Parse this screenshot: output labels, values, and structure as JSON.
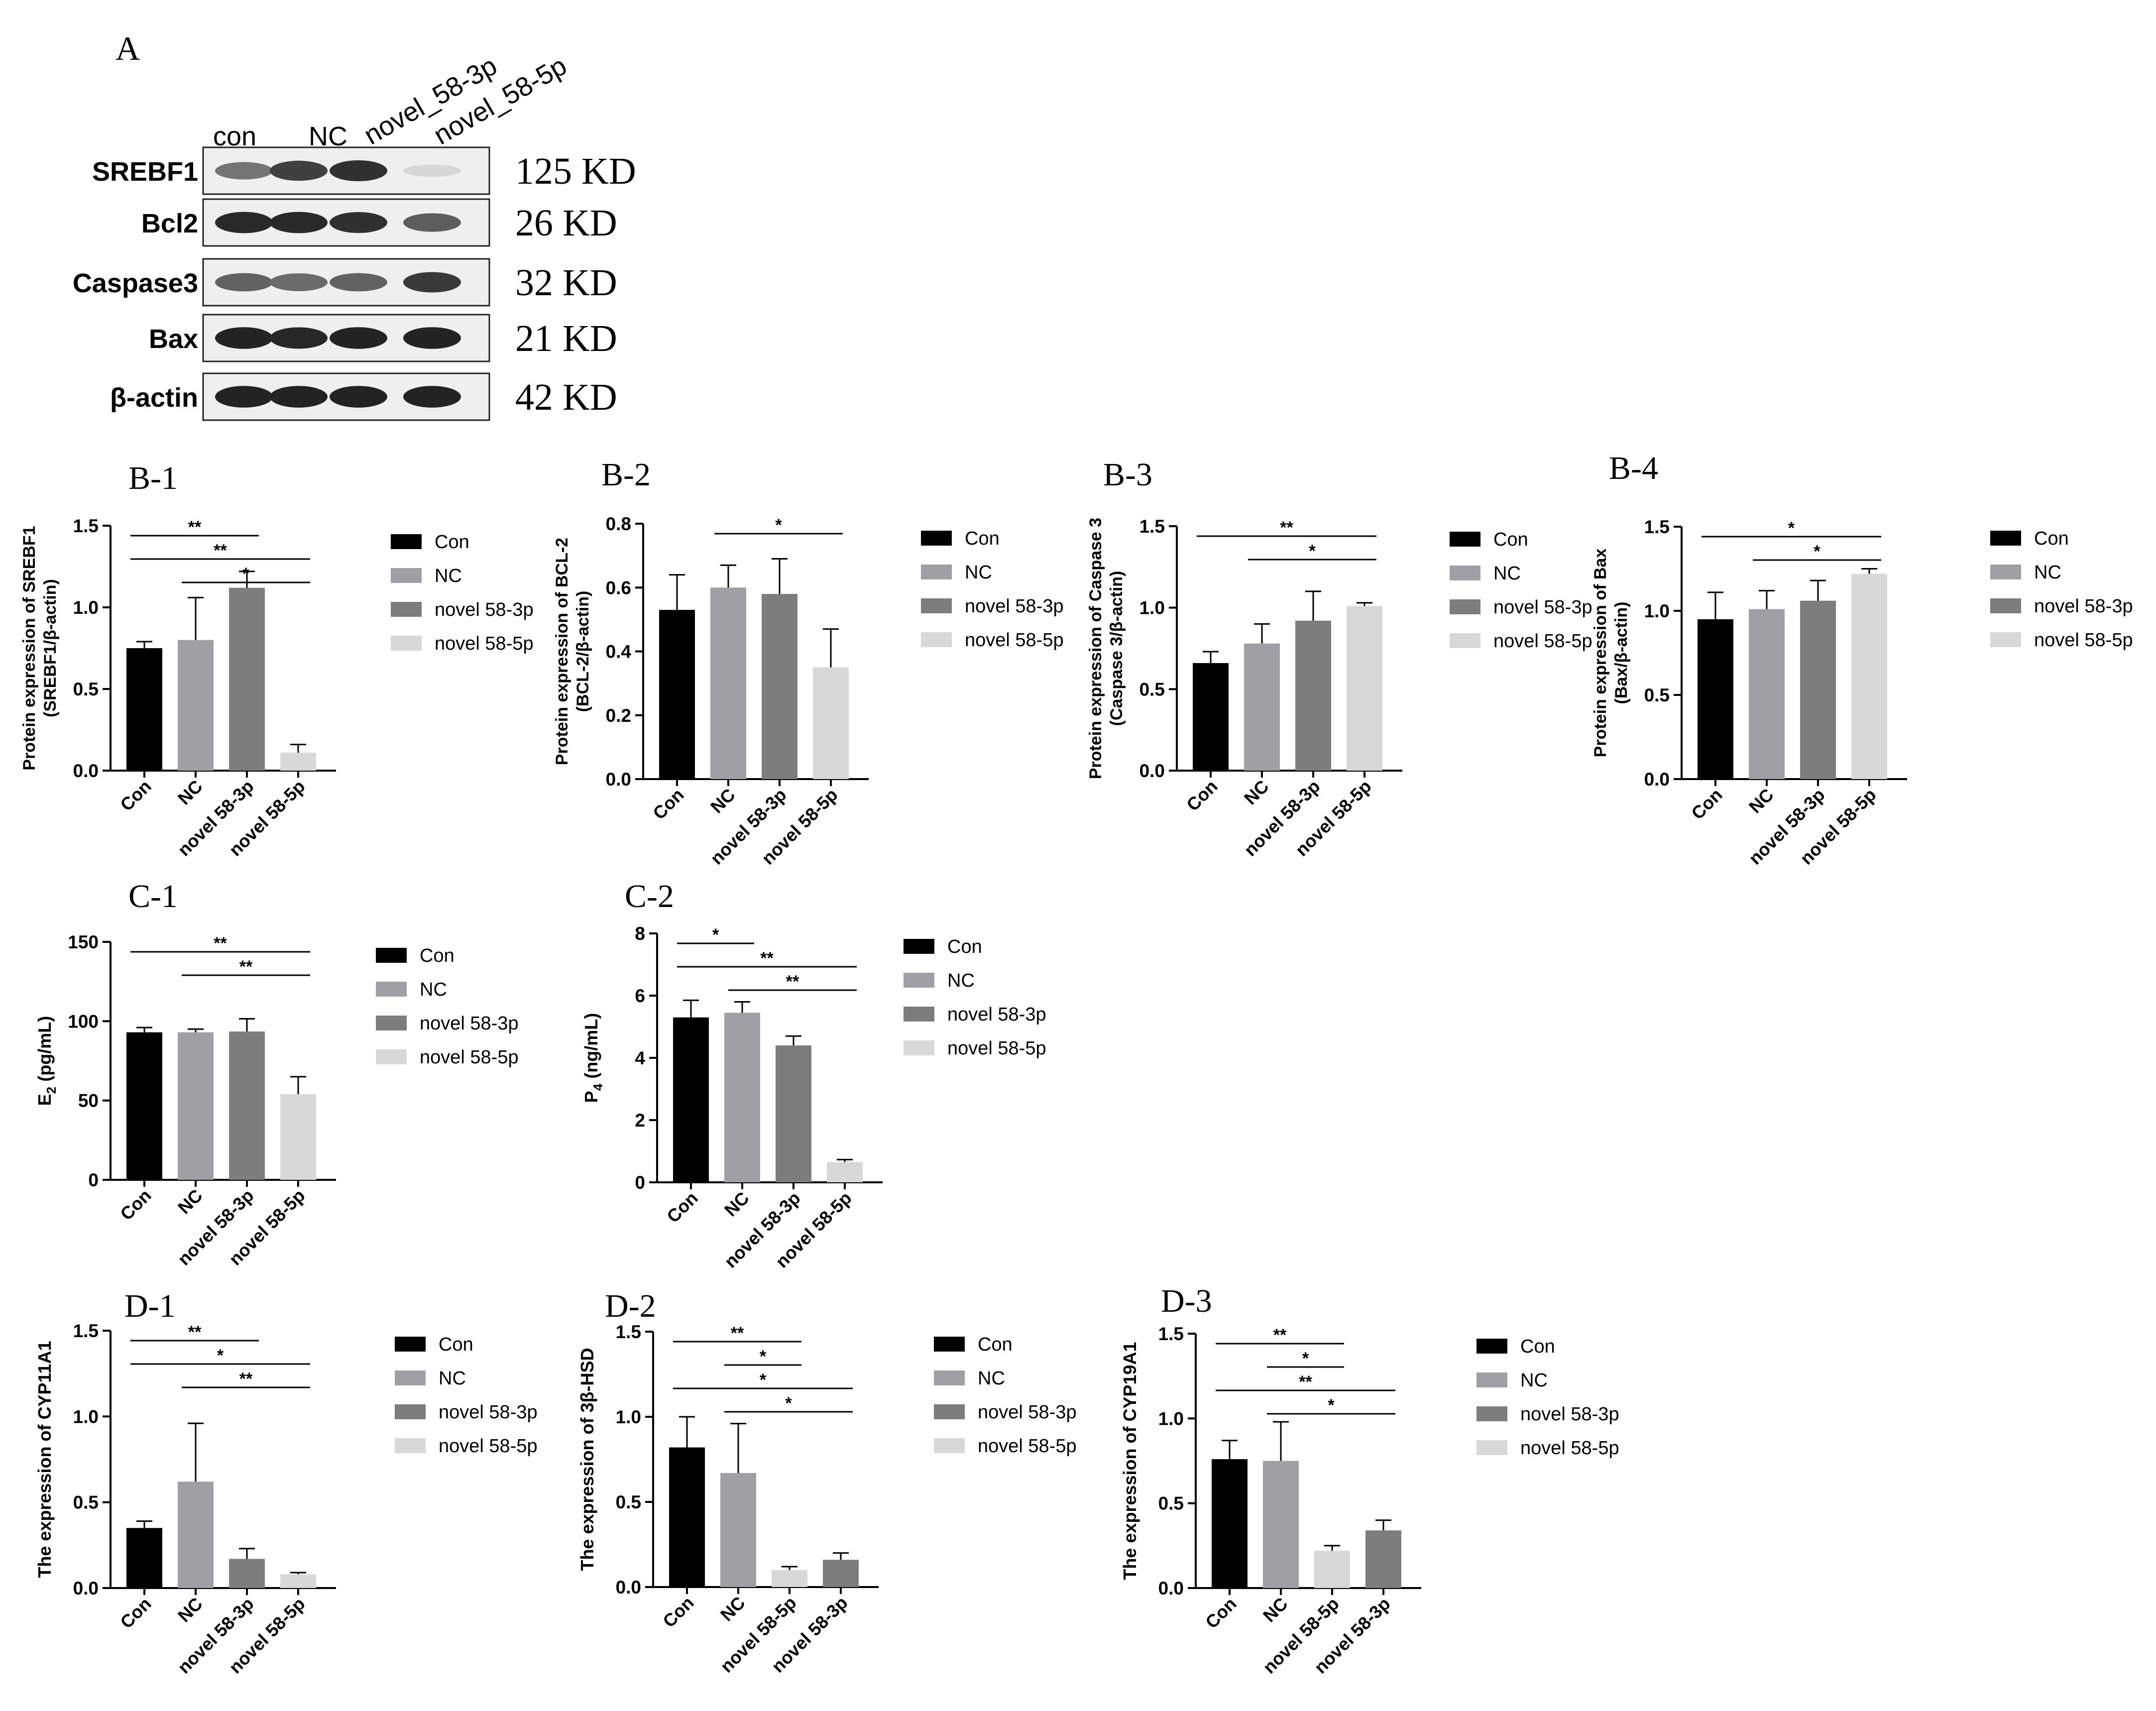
{
  "figure": {
    "panel_a": {
      "label": "A",
      "lanes": [
        "con",
        "NC",
        "novel_58-3p",
        "novel_58-5p"
      ],
      "rows": [
        {
          "protein": "SREBF1",
          "size": "125 KD",
          "intensity": [
            0.62,
            0.85,
            0.92,
            0.18
          ]
        },
        {
          "protein": "Bcl2",
          "size": "26 KD",
          "intensity": [
            0.95,
            0.95,
            0.92,
            0.72
          ]
        },
        {
          "protein": "Caspase3",
          "size": "32 KD",
          "intensity": [
            0.7,
            0.66,
            0.7,
            0.88
          ]
        },
        {
          "protein": "Bax",
          "size": "21 KD",
          "intensity": [
            0.98,
            0.96,
            0.98,
            0.98
          ]
        },
        {
          "protein": "β-actin",
          "size": "42 KD",
          "intensity": [
            0.98,
            0.98,
            0.98,
            0.98
          ]
        }
      ]
    },
    "colors": {
      "Con": "#000000",
      "NC": "#a0a0a4",
      "novel 58-3p": "#7d7d7d",
      "novel 58-5p": "#d8d8d8"
    },
    "legend": [
      "Con",
      "NC",
      "novel 58-3p",
      "novel 58-5p"
    ]
  },
  "chart_data": [
    {
      "panel": "B-1",
      "type": "bar",
      "ylabel": [
        "Protein expression of SREBF1",
        "(SREBF1/β-actin)"
      ],
      "ylim": [
        0,
        1.5
      ],
      "yticks": [
        "0.0",
        "0.5",
        "1.0",
        "1.5"
      ],
      "categories": [
        "Con",
        "NC",
        "novel 58-3p",
        "novel 58-5p"
      ],
      "values": [
        0.75,
        0.8,
        1.12,
        0.11
      ],
      "errors": [
        0.04,
        0.26,
        0.1,
        0.05
      ],
      "significance": [
        {
          "from": 0,
          "to": 2,
          "label": "**"
        },
        {
          "from": 0,
          "to": 3,
          "label": "**"
        },
        {
          "from": 1,
          "to": 3,
          "label": "*"
        }
      ]
    },
    {
      "panel": "B-2",
      "type": "bar",
      "ylabel": [
        "Protein expression of BCL-2",
        "(BCL-2/β-actin)"
      ],
      "ylim": [
        0,
        0.8
      ],
      "yticks": [
        "0.0",
        "0.2",
        "0.4",
        "0.6",
        "0.8"
      ],
      "categories": [
        "Con",
        "NC",
        "novel 58-3p",
        "novel 58-5p"
      ],
      "values": [
        0.53,
        0.6,
        0.58,
        0.35
      ],
      "errors": [
        0.11,
        0.07,
        0.11,
        0.12
      ],
      "significance": [
        {
          "from": 1,
          "to": 3,
          "label": "*"
        }
      ]
    },
    {
      "panel": "B-3",
      "type": "bar",
      "ylabel": [
        "Protein expression of Caspase 3",
        "(Caspase 3/β-actin)"
      ],
      "ylim": [
        0,
        1.5
      ],
      "yticks": [
        "0.0",
        "0.5",
        "1.0",
        "1.5"
      ],
      "categories": [
        "Con",
        "NC",
        "novel 58-3p",
        "novel 58-5p"
      ],
      "values": [
        0.66,
        0.78,
        0.92,
        1.01
      ],
      "errors": [
        0.07,
        0.12,
        0.18,
        0.02
      ],
      "significance": [
        {
          "from": 0,
          "to": 3,
          "label": "**"
        },
        {
          "from": 1,
          "to": 3,
          "label": "*"
        }
      ]
    },
    {
      "panel": "B-4",
      "type": "bar",
      "ylabel": [
        "Protein expression of Bax",
        "(Bax/β-actin)"
      ],
      "ylim": [
        0,
        1.5
      ],
      "yticks": [
        "0.0",
        "0.5",
        "1.0",
        "1.5"
      ],
      "categories": [
        "Con",
        "NC",
        "novel 58-3p",
        "novel 58-5p"
      ],
      "values": [
        0.95,
        1.01,
        1.06,
        1.22
      ],
      "errors": [
        0.16,
        0.11,
        0.12,
        0.03
      ],
      "significance": [
        {
          "from": 0,
          "to": 3,
          "label": "*"
        },
        {
          "from": 1,
          "to": 3,
          "label": "*"
        }
      ]
    },
    {
      "panel": "C-1",
      "type": "bar",
      "ylabel": [
        "E2 (pg/mL)"
      ],
      "ylim": [
        0,
        150
      ],
      "yticks": [
        "0",
        "50",
        "100",
        "150"
      ],
      "categories": [
        "Con",
        "NC",
        "novel 58-3p",
        "novel 58-5p"
      ],
      "values": [
        93,
        93,
        93.5,
        54
      ],
      "errors": [
        3,
        2,
        8,
        11
      ],
      "significance": [
        {
          "from": 0,
          "to": 3,
          "label": "**"
        },
        {
          "from": 1,
          "to": 3,
          "label": "**"
        }
      ]
    },
    {
      "panel": "C-2",
      "type": "bar",
      "ylabel": [
        "P4 (ng/mL)"
      ],
      "ylim": [
        0,
        8
      ],
      "yticks": [
        "0",
        "2",
        "4",
        "6",
        "8"
      ],
      "categories": [
        "Con",
        "NC",
        "novel 58-3p",
        "novel 58-5p"
      ],
      "values": [
        5.3,
        5.45,
        4.4,
        0.65
      ],
      "errors": [
        0.55,
        0.35,
        0.3,
        0.08
      ],
      "significance": [
        {
          "from": 0,
          "to": 1,
          "label": "*"
        },
        {
          "from": 0,
          "to": 3,
          "label": "**"
        },
        {
          "from": 1,
          "to": 3,
          "label": "**"
        }
      ]
    },
    {
      "panel": "D-1",
      "type": "bar",
      "ylabel": [
        "The expression of CYP11A1"
      ],
      "ylim": [
        0,
        1.5
      ],
      "yticks": [
        "0.0",
        "0.5",
        "1.0",
        "1.5"
      ],
      "categories": [
        "Con",
        "NC",
        "novel 58-3p",
        "novel 58-5p"
      ],
      "values": [
        0.35,
        0.62,
        0.17,
        0.08
      ],
      "errors": [
        0.04,
        0.34,
        0.06,
        0.01
      ],
      "significance": [
        {
          "from": 0,
          "to": 2,
          "label": "**"
        },
        {
          "from": 0,
          "to": 3,
          "label": "*"
        },
        {
          "from": 1,
          "to": 3,
          "label": "**"
        }
      ]
    },
    {
      "panel": "D-2",
      "type": "bar",
      "ylabel": [
        "The expression of 3β-HSD"
      ],
      "ylim": [
        0,
        1.5
      ],
      "yticks": [
        "0.0",
        "0.5",
        "1.0",
        "1.5"
      ],
      "categories": [
        "Con",
        "NC",
        "novel 58-5p",
        "novel 58-3p"
      ],
      "values": [
        0.82,
        0.67,
        0.1,
        0.16
      ],
      "errors": [
        0.18,
        0.29,
        0.02,
        0.04
      ],
      "significance": [
        {
          "from": 0,
          "to": 2,
          "label": "**"
        },
        {
          "from": 1,
          "to": 2,
          "label": "*"
        },
        {
          "from": 0,
          "to": 3,
          "label": "*"
        },
        {
          "from": 1,
          "to": 3,
          "label": "*"
        }
      ]
    },
    {
      "panel": "D-3",
      "type": "bar",
      "ylabel": [
        "The expression of CYP19A1"
      ],
      "ylim": [
        0,
        1.5
      ],
      "yticks": [
        "0.0",
        "0.5",
        "1.0",
        "1.5"
      ],
      "categories": [
        "Con",
        "NC",
        "novel 58-5p",
        "novel 58-3p"
      ],
      "values": [
        0.76,
        0.75,
        0.22,
        0.34
      ],
      "errors": [
        0.11,
        0.23,
        0.03,
        0.06
      ],
      "significance": [
        {
          "from": 0,
          "to": 2,
          "label": "**"
        },
        {
          "from": 1,
          "to": 2,
          "label": "*"
        },
        {
          "from": 0,
          "to": 3,
          "label": "**"
        },
        {
          "from": 1,
          "to": 3,
          "label": "*"
        }
      ]
    }
  ]
}
